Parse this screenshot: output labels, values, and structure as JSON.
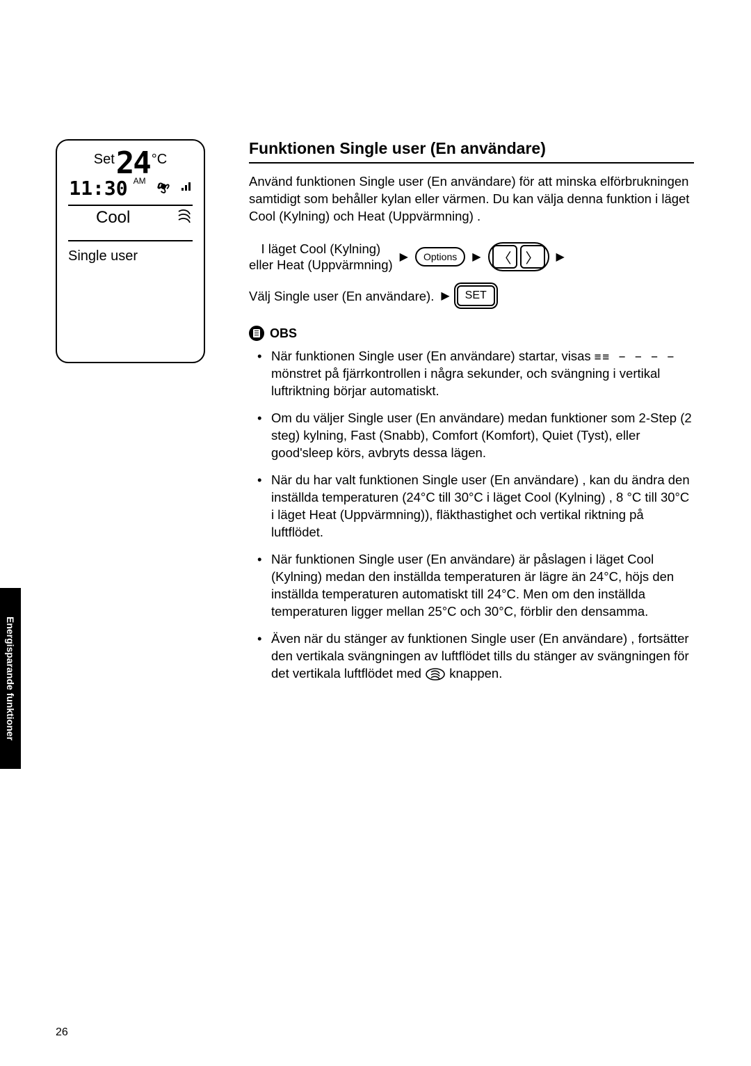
{
  "remote": {
    "set_label": "Set",
    "temp_value": "24",
    "temp_unit": "°C",
    "time_value": "11:30",
    "ampm": "AM",
    "mode": "Cool",
    "function_label": "Single user"
  },
  "section": {
    "title": "Funktionen Single user (En användare)",
    "intro": "Använd funktionen Single user (En användare) för att minska elförbrukningen samtidigt som behåller kylan eller värmen. Du kan välja denna funktion i läget Cool (Kylning) och Heat (Uppvärmning) ."
  },
  "steps": {
    "mode_text_1": "I läget Cool (Kylning)",
    "mode_text_2": "eller Heat (Uppvärmning)",
    "options_label": "Options",
    "select_text": "Välj Single user (En användare).",
    "set_label": "SET"
  },
  "note": {
    "heading": "OBS",
    "items": [
      "När funktionen Single user (En användare) startar, visas {{pattern}} mönstret på fjärrkontrollen i några sekunder, och svängning i vertikal luftriktning börjar automatiskt.",
      "Om du väljer Single user (En användare) medan funktioner som 2-Step (2 steg) kylning, Fast (Snabb), Comfort (Komfort), Quiet (Tyst), eller good'sleep körs, avbryts dessa lägen.",
      "När du har valt funktionen Single user (En användare) , kan du ändra den inställda temperaturen (24°C till 30°C i läget Cool (Kylning) , 8 °C till 30°C i läget Heat (Uppvärmning)), fläkthastighet och vertikal riktning på luftflödet.",
      "När funktionen Single user (En användare) är påslagen i läget Cool (Kylning) medan den inställda temperaturen är lägre än 24°C, höjs den inställda temperaturen automatiskt till 24°C. Men om den inställda temperaturen ligger mellan 25°C och 30°C, förblir den densamma.",
      "Även när du stänger av funktionen Single user (En användare) , fortsätter den vertikala svängningen av luftflödet tills du stänger av svängningen för det vertikala luftflödet med {{swingbtn}} knappen."
    ],
    "pattern_glyph": "≡≡ − − − −"
  },
  "side_tab": "Energisparande funktioner",
  "page_number": "26",
  "colors": {
    "text": "#000000",
    "bg": "#ffffff",
    "tab_bg": "#000000",
    "tab_fg": "#ffffff"
  }
}
